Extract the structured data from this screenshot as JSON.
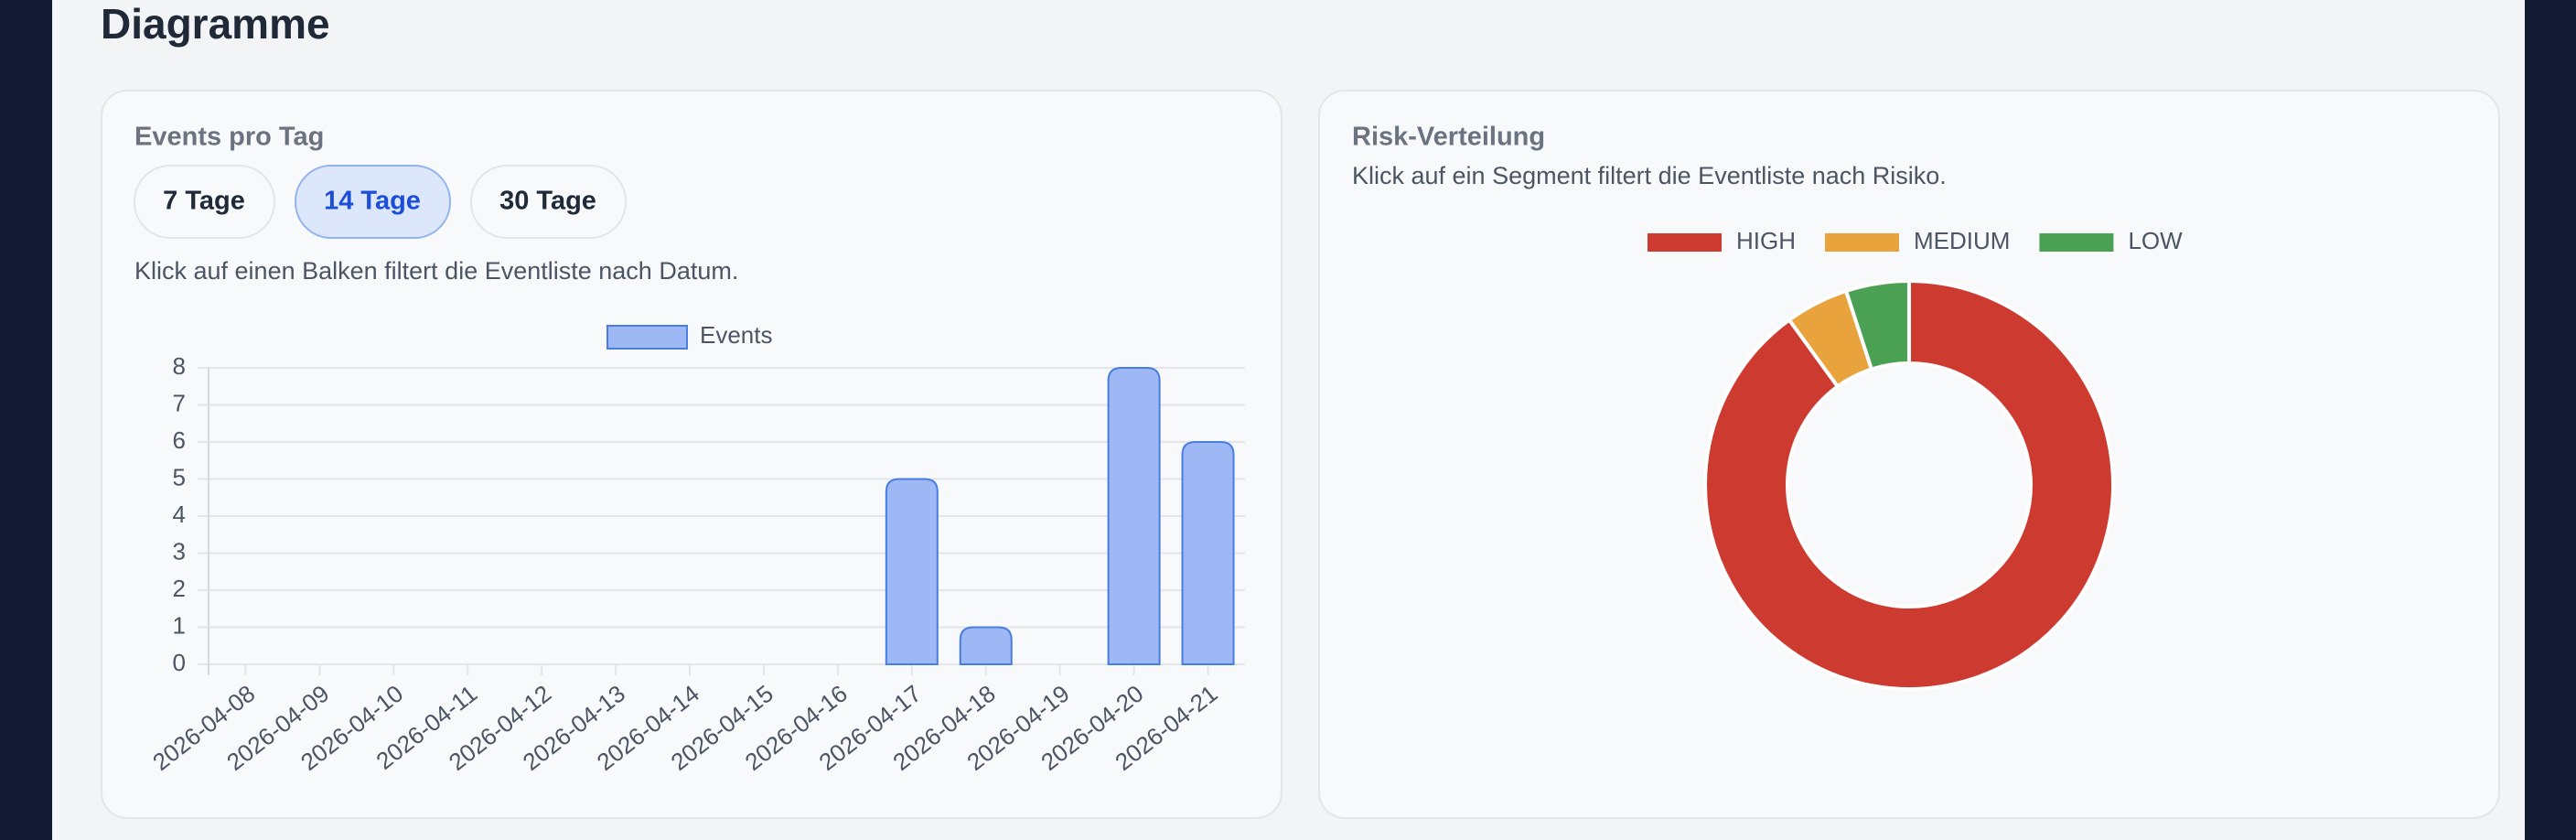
{
  "heading": "Diagramme",
  "panels": [
    {
      "title": "Events pro Tag",
      "buttons": [
        "7 Tage",
        "14 Tage",
        "30 Tage"
      ],
      "hint": "Klick auf einen Balken filtert die Eventliste nach Datum."
    },
    {
      "title": "Risk-Verteilung",
      "hint": "Klick auf ein Segment filtert die Eventliste nach Risiko."
    }
  ],
  "chart_data": [
    {
      "type": "bar",
      "categories": [
        "2026-04-08",
        "2026-04-09",
        "2026-04-10",
        "2026-04-11",
        "2026-04-12",
        "2026-04-13",
        "2026-04-14",
        "2026-04-15",
        "2026-04-16",
        "2026-04-17",
        "2026-04-18",
        "2026-04-19",
        "2026-04-20",
        "2026-04-21"
      ],
      "series": [
        {
          "name": "Events",
          "color": "#9db8f5",
          "values": [
            0,
            0,
            0,
            0,
            0,
            0,
            0,
            0,
            0,
            5,
            1,
            0,
            8,
            6
          ]
        }
      ],
      "ylim": [
        0,
        8
      ],
      "yticks": [
        0,
        1,
        2,
        3,
        4,
        5,
        6,
        7,
        8
      ],
      "grid": true
    },
    {
      "type": "doughnut",
      "categories": [
        "HIGH",
        "MEDIUM",
        "LOW"
      ],
      "values": [
        18,
        1,
        1
      ],
      "colors": [
        "#cc3a30",
        "#e8a33d",
        "#4aa154"
      ]
    }
  ]
}
